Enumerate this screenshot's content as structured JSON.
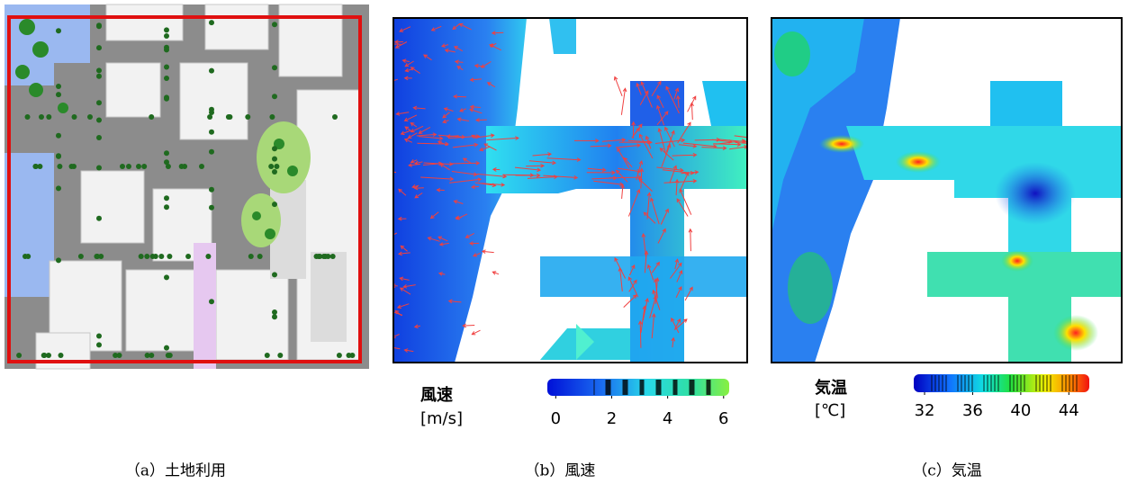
{
  "panels": [
    {
      "caption": "（a）土地利用"
    },
    {
      "caption": "（b）風速",
      "colorbar": {
        "label": "風速",
        "unit": "[m/s]",
        "lim": [
          -0.3,
          6.2
        ],
        "ticks": [
          0,
          2,
          4,
          6
        ]
      }
    },
    {
      "caption": "（c）気温",
      "colorbar": {
        "label": "気温",
        "unit": "[℃]",
        "lim": [
          31.1,
          45.7
        ],
        "ticks": [
          32,
          36,
          40,
          44
        ]
      }
    }
  ]
}
